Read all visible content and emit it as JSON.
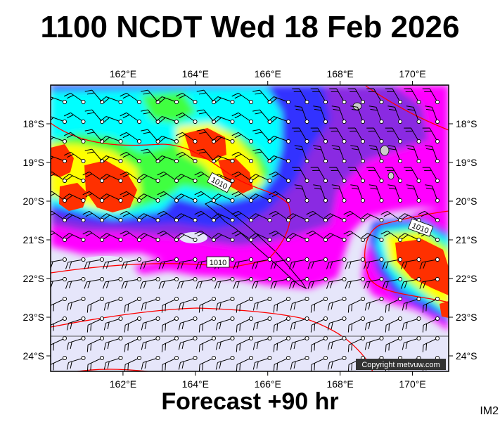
{
  "title": "1100 NCDT Wed 18 Feb 2026",
  "forecast_label": "Forecast +90 hr",
  "corner_tag": "IM2",
  "copyright": "Copyright metvuw.com",
  "map": {
    "lon_labels": [
      "162°E",
      "164°E",
      "166°E",
      "168°E",
      "170°E"
    ],
    "lon_values": [
      162,
      164,
      166,
      168,
      170
    ],
    "lat_labels": [
      "18°S",
      "19°S",
      "20°S",
      "21°S",
      "22°S",
      "23°S",
      "24°S"
    ],
    "lat_values": [
      -18,
      -19,
      -20,
      -21,
      -22,
      -23,
      -24
    ],
    "lon_range": [
      160,
      171
    ],
    "lat_range": [
      -17.0,
      -24.4
    ],
    "isobar_label": "1010",
    "colors": {
      "background_low": "#e6e6fa",
      "magenta": "#ff00ff",
      "purple": "#8a2be2",
      "blue": "#3030ff",
      "cyan": "#00ffff",
      "green": "#40ff40",
      "yellow": "#ffff00",
      "red": "#ff3000",
      "isobar": "#ff0000",
      "grid": "#000000"
    }
  }
}
